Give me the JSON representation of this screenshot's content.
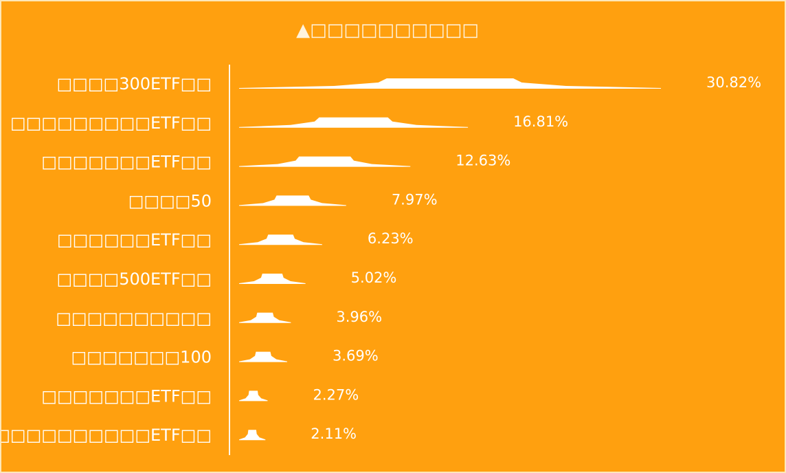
{
  "chart_data": {
    "type": "bar",
    "orientation": "horizontal",
    "title": "▲□□□□□□□□□□",
    "categories": [
      "□□□□300ETF□□",
      "□□□□□□□□□ETF□□",
      "□□□□□□□ETF□□",
      "□□□□50",
      "□□□□□□ETF□□",
      "□□□□500ETF□□",
      "□□□□□□□□□□",
      "□□□□□□□100",
      "□□□□□□□ETF□□",
      "□□□□□□□□□□ETF□□"
    ],
    "values": [
      30.82,
      16.81,
      12.63,
      7.97,
      6.23,
      5.02,
      3.96,
      3.69,
      2.27,
      2.11
    ],
    "value_labels": [
      "30.82%",
      "16.81%",
      "12.63%",
      "7.97%",
      "6.23%",
      "5.02%",
      "3.96%",
      "3.69%",
      "2.27%",
      "2.11%"
    ],
    "unit": "%",
    "xlim": [
      0,
      32
    ],
    "grid": false,
    "legend": "none"
  },
  "colors": {
    "background": "#ffa00f",
    "bars": "#ffffff",
    "text": "#ffffff",
    "border": "#fde7b8"
  }
}
